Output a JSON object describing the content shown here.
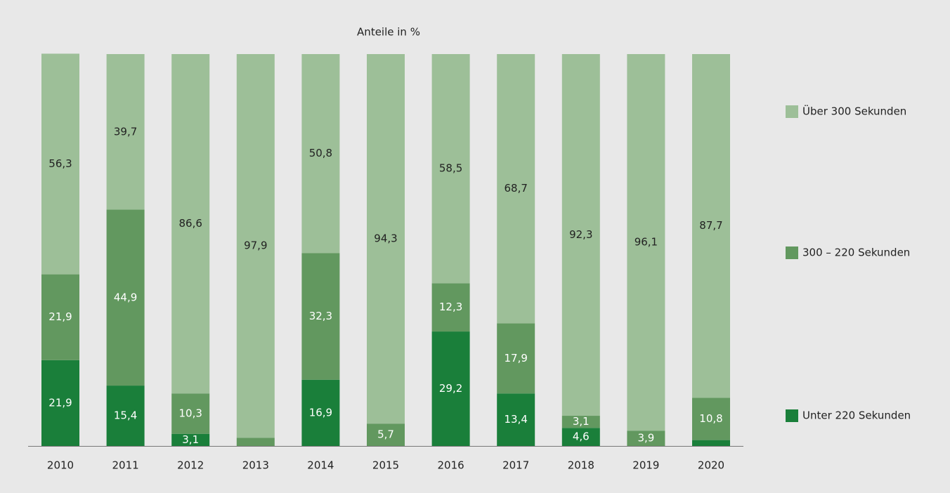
{
  "chart_data": {
    "type": "stacked_bar",
    "title": "Anteile in %",
    "categories": [
      "2010",
      "2011",
      "2012",
      "2013",
      "2014",
      "2015",
      "2016",
      "2017",
      "2018",
      "2019",
      "2020"
    ],
    "ylim": [
      0,
      100
    ],
    "series": [
      {
        "name": "Unter 220 Sekunden",
        "color": "#1a7f3a",
        "values": [
          21.9,
          15.4,
          3.1,
          0,
          16.9,
          0,
          29.2,
          13.4,
          4.6,
          0,
          1.5
        ],
        "value_labels": [
          "21,9",
          "15,4",
          "3,1",
          null,
          "16,9",
          null,
          "29,2",
          "13,4",
          "4,6",
          null,
          null
        ]
      },
      {
        "name": "300 – 220 Sekunden",
        "color": "#62985f",
        "values": [
          21.9,
          44.9,
          10.3,
          2.1,
          32.3,
          5.7,
          12.3,
          17.9,
          3.1,
          3.9,
          10.8
        ],
        "value_labels": [
          "21,9",
          "44,9",
          "10,3",
          null,
          "32,3",
          "5,7",
          "12,3",
          "17,9",
          "3,1",
          "3,9",
          "10,8"
        ]
      },
      {
        "name": "Über 300 Sekunden",
        "color": "#9dbf98",
        "values": [
          56.3,
          39.7,
          86.6,
          97.9,
          50.8,
          94.3,
          58.5,
          68.7,
          92.3,
          96.1,
          87.7
        ],
        "value_labels": [
          "56,3",
          "39,7",
          "86,6",
          "97,9",
          "50,8",
          "94,3",
          "58,5",
          "68,7",
          "92,3",
          "96,1",
          "87,7"
        ]
      }
    ]
  }
}
